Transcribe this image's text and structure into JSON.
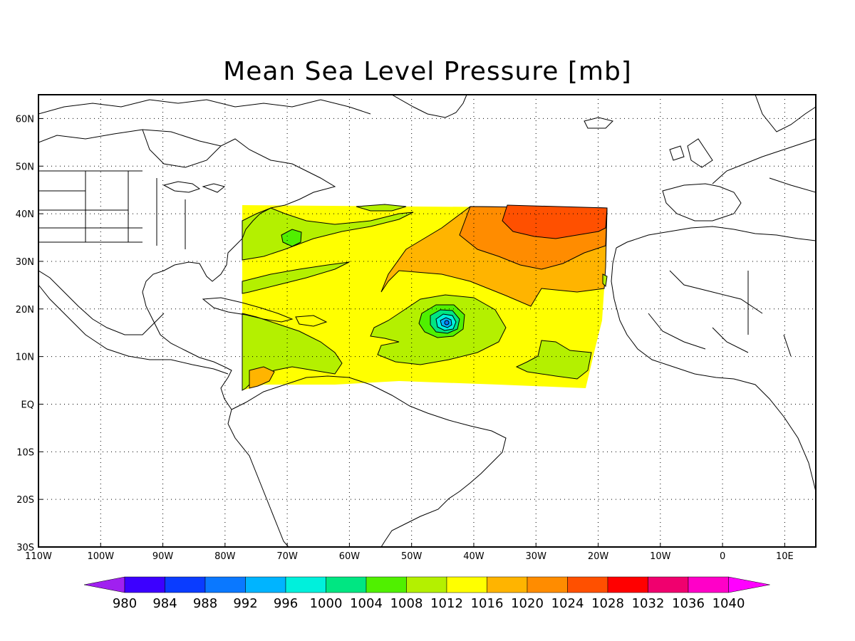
{
  "title": "Mean Sea Level Pressure [mb]",
  "map": {
    "lon_range": [
      -110,
      15
    ],
    "lat_range": [
      -30,
      65
    ],
    "lon_ticks": [
      {
        "value": -110,
        "label": "110W"
      },
      {
        "value": -100,
        "label": "100W"
      },
      {
        "value": -90,
        "label": "90W"
      },
      {
        "value": -80,
        "label": "80W"
      },
      {
        "value": -70,
        "label": "70W"
      },
      {
        "value": -60,
        "label": "60W"
      },
      {
        "value": -50,
        "label": "50W"
      },
      {
        "value": -40,
        "label": "40W"
      },
      {
        "value": -30,
        "label": "30W"
      },
      {
        "value": -20,
        "label": "20W"
      },
      {
        "value": -10,
        "label": "10W"
      },
      {
        "value": 0,
        "label": "0"
      },
      {
        "value": 10,
        "label": "10E"
      }
    ],
    "lat_ticks": [
      {
        "value": 60,
        "label": "60N"
      },
      {
        "value": 50,
        "label": "50N"
      },
      {
        "value": 40,
        "label": "40N"
      },
      {
        "value": 30,
        "label": "30N"
      },
      {
        "value": 20,
        "label": "20N"
      },
      {
        "value": 10,
        "label": "10N"
      },
      {
        "value": 0,
        "label": "EQ"
      },
      {
        "value": -10,
        "label": "10S"
      },
      {
        "value": -20,
        "label": "20S"
      },
      {
        "value": -30,
        "label": "30S"
      }
    ],
    "grid": "dotted",
    "data_domain": {
      "lon": [
        -77.5,
        -18.5
      ],
      "lat": [
        3.5,
        42
      ]
    },
    "features": {
      "low_center": {
        "lon": -45,
        "lat": 17,
        "min_level": 992
      },
      "high_center": {
        "lon": -31,
        "lat": 37,
        "max_level": 1028
      }
    }
  },
  "colorbar": {
    "levels": [
      "980",
      "984",
      "988",
      "992",
      "996",
      "1000",
      "1004",
      "1008",
      "1012",
      "1016",
      "1020",
      "1024",
      "1028",
      "1032",
      "1036",
      "1040"
    ],
    "colors": [
      "#a020f0",
      "#3c00ff",
      "#0a3cff",
      "#0a78ff",
      "#00b4ff",
      "#00f0dc",
      "#00e682",
      "#50f000",
      "#b4f000",
      "#ffff00",
      "#ffb400",
      "#ff8c00",
      "#ff5000",
      "#ff0000",
      "#f0006e",
      "#ff00c8",
      "#ff00ff"
    ]
  }
}
